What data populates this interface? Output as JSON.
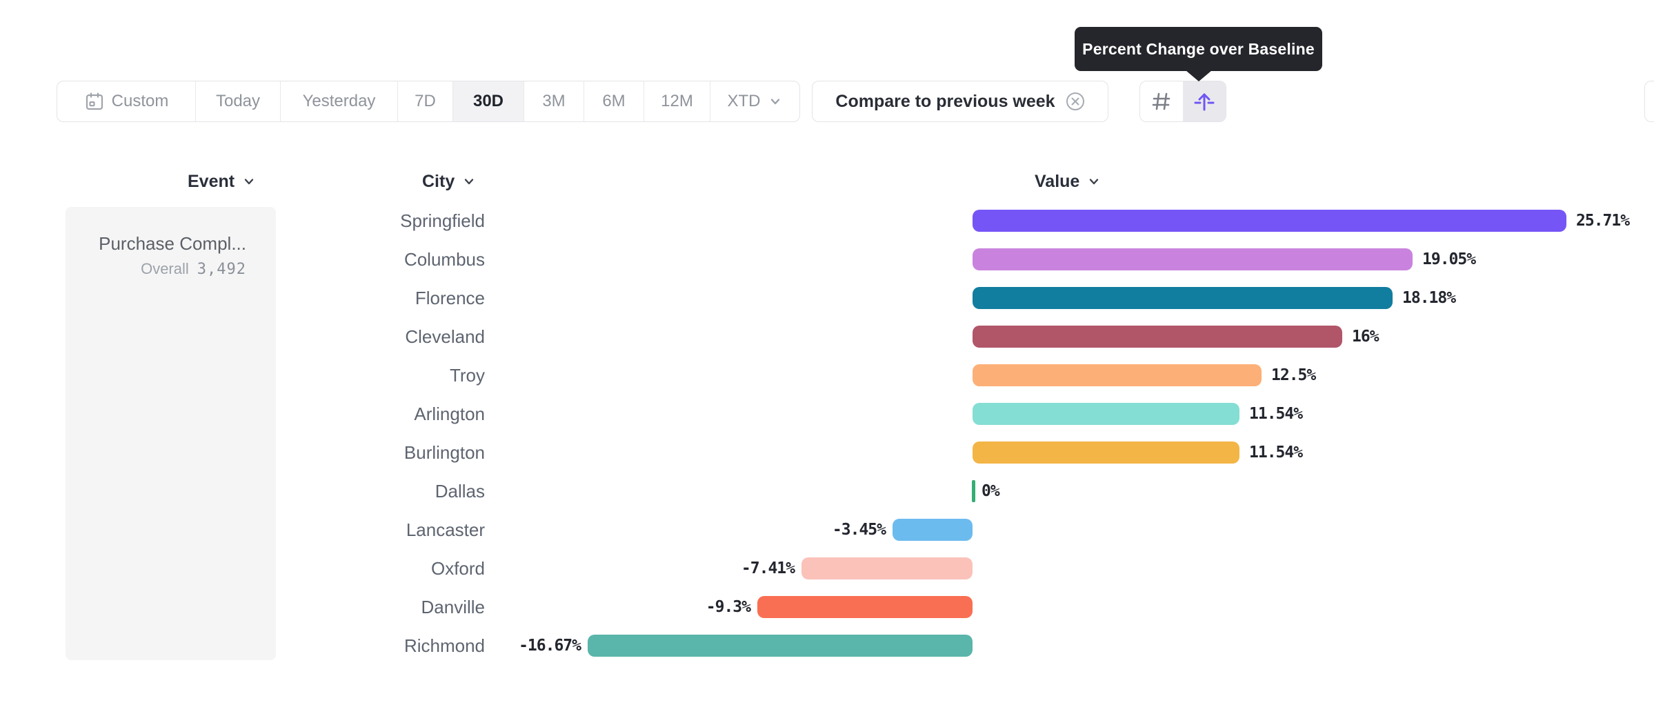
{
  "tooltip": {
    "text": "Percent Change over Baseline"
  },
  "toolbar": {
    "date_ranges": [
      {
        "label": "Custom",
        "selected": false,
        "icon": "calendar-icon"
      },
      {
        "label": "Today",
        "selected": false
      },
      {
        "label": "Yesterday",
        "selected": false
      },
      {
        "label": "7D",
        "selected": false
      },
      {
        "label": "30D",
        "selected": true
      },
      {
        "label": "3M",
        "selected": false
      },
      {
        "label": "6M",
        "selected": false
      },
      {
        "label": "12M",
        "selected": false
      },
      {
        "label": "XTD",
        "selected": false,
        "chevron": "chevron-down-icon"
      }
    ],
    "compare": {
      "label": "Compare to previous week",
      "close_icon": "x-circle-icon"
    },
    "view_toggle": [
      {
        "name": "grid-view",
        "icon": "hash-icon",
        "selected": false
      },
      {
        "name": "baseline-view",
        "icon": "arrow-baseline-icon",
        "selected": true
      }
    ]
  },
  "table": {
    "columns": [
      {
        "label": "Event"
      },
      {
        "label": "City"
      },
      {
        "label": "Value"
      }
    ]
  },
  "event_panel": {
    "event_name": "Purchase Compl...",
    "overall_label": "Overall",
    "overall_value": "3,492"
  },
  "chart_data": {
    "type": "bar",
    "orientation": "horizontal",
    "title": "Percent Change over Baseline",
    "unit": "%",
    "baseline": 0,
    "categories": [
      "Springfield",
      "Columbus",
      "Florence",
      "Cleveland",
      "Troy",
      "Arlington",
      "Burlington",
      "Dallas",
      "Lancaster",
      "Oxford",
      "Danville",
      "Richmond"
    ],
    "values": [
      25.71,
      19.05,
      18.18,
      16,
      12.5,
      11.54,
      11.54,
      0,
      -3.45,
      -7.41,
      -9.3,
      -16.67
    ],
    "labels": [
      "25.71%",
      "19.05%",
      "18.18%",
      "16%",
      "12.5%",
      "11.54%",
      "11.54%",
      "0%",
      "-3.45%",
      "-7.41%",
      "-9.3%",
      "-16.67%"
    ],
    "colors": [
      "#7655F7",
      "#C983DE",
      "#117D9F",
      "#B15568",
      "#FCB078",
      "#84DED3",
      "#F3B545",
      "#35AE73",
      "#6CBBEF",
      "#FBC2BA",
      "#F96F53",
      "#5AB5AB"
    ]
  }
}
